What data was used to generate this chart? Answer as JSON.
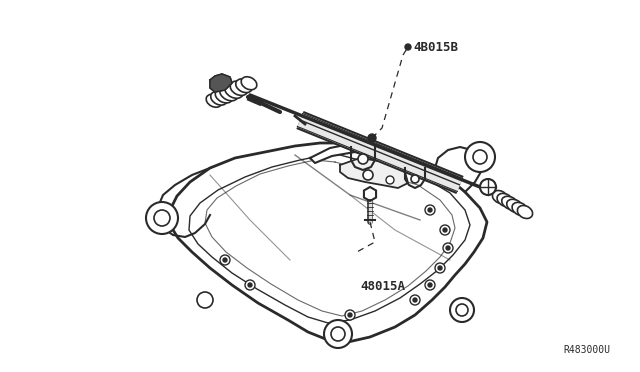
{
  "fig_width": 6.4,
  "fig_height": 3.72,
  "dpi": 100,
  "bg_color": "#ffffff",
  "line_color": "#2a2a2a",
  "label_48015B": "4B015B",
  "label_48015A": "48015A",
  "label_ref": "R483000U",
  "xlim": [
    0,
    640
  ],
  "ylim": [
    0,
    372
  ]
}
